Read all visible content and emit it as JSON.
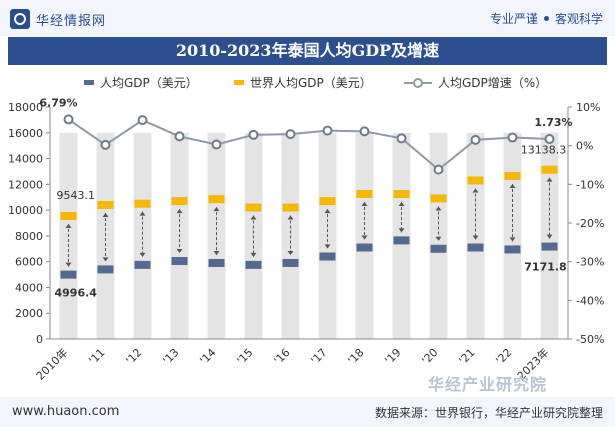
{
  "header": {
    "brand": "华经情报网",
    "tag1": "专业严谨",
    "tag2": "客观科学",
    "accent": "#2b4f8f"
  },
  "title": "2010-2023年泰国人均GDP及增速",
  "legend": [
    "人均GDP（美元）",
    "世界人均GDP（美元）",
    "人均GDP增速（%）"
  ],
  "footer": {
    "site": "www.huaon.com",
    "source": "数据来源：世界银行，华经产业研究院整理",
    "watermark": "华经产业研究院"
  },
  "chart_data": {
    "type": "line",
    "categories": [
      "2010年",
      "'11",
      "'12",
      "'13",
      "'14",
      "'15",
      "'16",
      "'17",
      "'18",
      "'19",
      "'20",
      "'21",
      "'22",
      "2023年"
    ],
    "series": [
      {
        "name": "人均GDP（美元）",
        "axis": "left",
        "color": "#54698f",
        "values": [
          4996.4,
          5400,
          5750,
          6050,
          5900,
          5750,
          5900,
          6400,
          7100,
          7650,
          7000,
          7100,
          6950,
          7171.8
        ]
      },
      {
        "name": "世界人均GDP（美元）",
        "axis": "left",
        "color": "#f5b800",
        "values": [
          9543.1,
          10400,
          10500,
          10700,
          10850,
          10200,
          10200,
          10700,
          11250,
          11250,
          10900,
          12300,
          12650,
          13138.3
        ]
      },
      {
        "name": "人均GDP增速（%）",
        "axis": "right",
        "color": "#8e99a8",
        "values": [
          6.79,
          0.2,
          6.6,
          2.4,
          0.3,
          2.8,
          3.0,
          3.9,
          3.7,
          1.9,
          -6.2,
          1.5,
          2.1,
          1.73
        ]
      }
    ],
    "data_labels": {
      "growth_first": "6.79%",
      "growth_last": "1.73%",
      "gdp_first": "4996.4",
      "gdp_last": "7171.8",
      "world_first": "9543.1",
      "world_last": "13138.3"
    },
    "y_left": {
      "min": 0,
      "max": 18000,
      "step": 2000,
      "ticks": [
        "0",
        "2000",
        "4000",
        "6000",
        "8000",
        "10000",
        "12000",
        "14000",
        "16000",
        "18000"
      ]
    },
    "y_right": {
      "min": -50,
      "max": 10,
      "step": 10,
      "ticks": [
        "-50%",
        "-40%",
        "-30%",
        "-20%",
        "-10%",
        "0%",
        "10%"
      ]
    },
    "grid": false,
    "legend_position": "top"
  }
}
